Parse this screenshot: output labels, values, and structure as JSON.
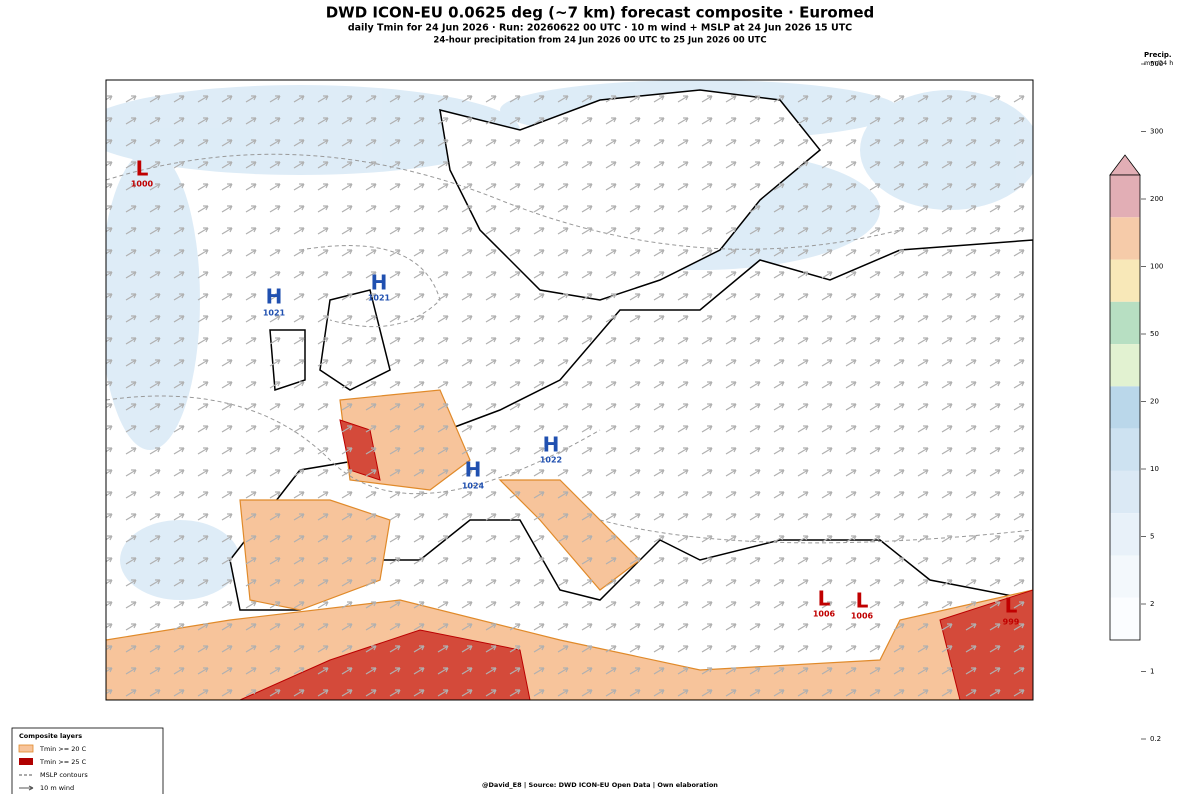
{
  "header": {
    "title": "DWD ICON-EU 0.0625 deg (~7 km) forecast composite · Euromed",
    "subtitle": "daily Tmin for 24 Jun 2026 · Run: 20260622 00 UTC · 10 m wind + MSLP at 24 Jun 2026 15 UTC",
    "subtitle2": "24-hour precipitation from 24 Jun 2026 00 UTC to 25 Jun 2026 00 UTC"
  },
  "pressure_centers": [
    {
      "label": "L",
      "value": "1000"
    },
    {
      "label": "H",
      "value": "1021"
    },
    {
      "label": "H",
      "value": "1021"
    },
    {
      "label": "H",
      "value": "1022"
    },
    {
      "label": "H",
      "value": "1024"
    },
    {
      "label": "L",
      "value": "1006"
    },
    {
      "label": "L",
      "value": "1006"
    },
    {
      "label": "L",
      "value": "999"
    }
  ],
  "colorbar": {
    "title": "Precip.",
    "unit": "mm/24 h",
    "ticks": [
      "500",
      "300",
      "200",
      "100",
      "50",
      "20",
      "10",
      "5",
      "2",
      "1",
      "0.2"
    ],
    "colors": [
      "#e2aeb5",
      "#f6cba9",
      "#f8e8b8",
      "#b7dfc2",
      "#e2f2d1",
      "#bad7ea",
      "#cde2f1",
      "#dbe9f5",
      "#e8f1f9",
      "#f3f8fc",
      "#fbfdff"
    ]
  },
  "legend": {
    "title": "Composite layers",
    "items": [
      "Tmin >= 20 C",
      "Tmin >= 25 C",
      "MSLP contours",
      "10 m wind"
    ]
  },
  "footer": "@David_E8 | Source: DWD ICON-EU Open Data | Own elaboration"
}
